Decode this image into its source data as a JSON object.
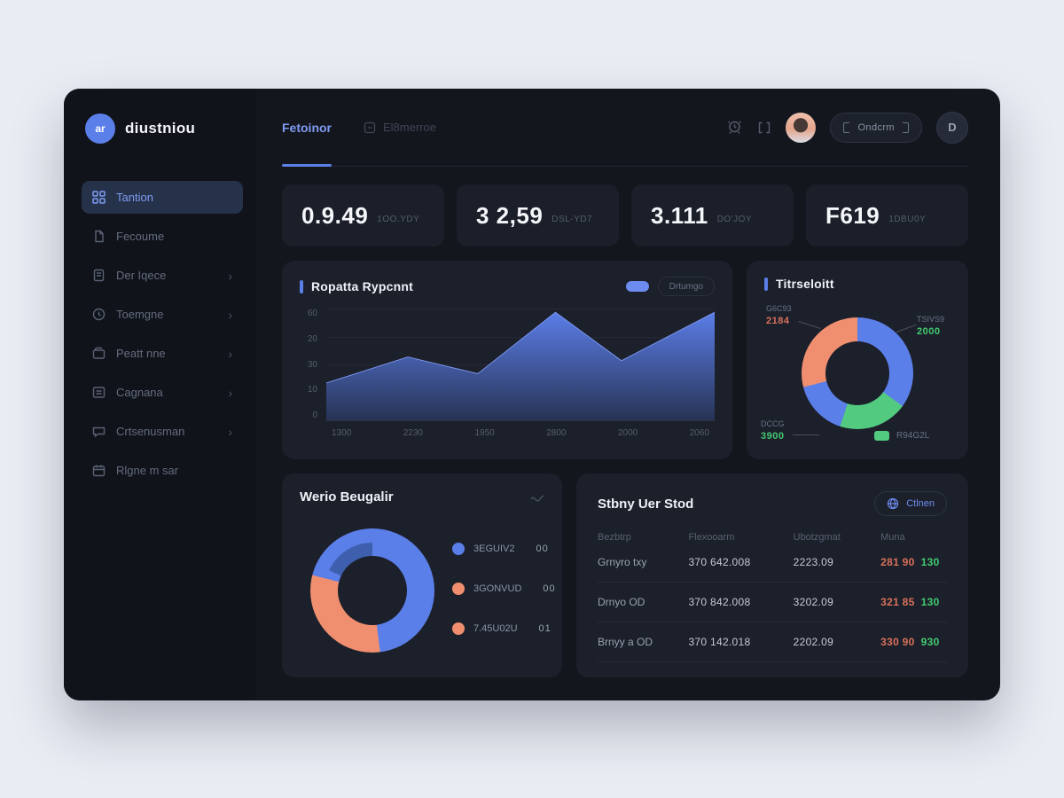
{
  "theme": {
    "page_bg": "#e9ecf3",
    "window_bg": "#14161d",
    "sidebar_bg": "#10131a",
    "card_bg": "#1c202b",
    "accent_blue": "#5b7fe8",
    "salmon": "#ef8f70",
    "green": "#52cb80",
    "red_text": "#d9705a",
    "green_text": "#43ca70"
  },
  "brand": {
    "name": "diustniou",
    "monogram": "ar"
  },
  "sidebar": {
    "items": [
      {
        "label": "Tantion"
      },
      {
        "label": "Fecoume"
      },
      {
        "label": "Der Iqece"
      },
      {
        "label": "Toemgne"
      },
      {
        "label": "Peatt nne"
      },
      {
        "label": "Cagnana"
      },
      {
        "label": "Crtsenusman"
      },
      {
        "label": "Rlgne m sar"
      }
    ]
  },
  "header": {
    "tabs": [
      {
        "label": "Fetoinor"
      },
      {
        "label": "El8merroe"
      }
    ],
    "pill_button_label": "Ondcrm",
    "circle_button_label": "D"
  },
  "stats": [
    {
      "value": "0.9.49",
      "caption": "1OO.YDY"
    },
    {
      "value": "3 2,59",
      "caption": "DSL-YD7"
    },
    {
      "value": "3.111",
      "caption": "DO'JOY"
    },
    {
      "value": "F619",
      "caption": "1DBU0Y"
    }
  ],
  "area_card": {
    "title": "Ropatta Rypcnnt",
    "legend_label": "Drtumgo"
  },
  "donut_card": {
    "title": "Titrseloitt",
    "callouts": [
      {
        "label": "G6C93",
        "value": "2184"
      },
      {
        "label": "TSIVS9",
        "value": "2000"
      },
      {
        "label": "DCCG",
        "value": "3900"
      }
    ],
    "legend_label": "R94G2L"
  },
  "breakdown_card": {
    "title": "Werio Beugalir",
    "legend": [
      {
        "label": "3EGUIV2",
        "value": "00",
        "color": "#5b7fe8"
      },
      {
        "label": "3GONVUD",
        "value": "00",
        "color": "#ef8f70"
      },
      {
        "label": "7.45U02U",
        "value": "01",
        "color": "#ef8f70"
      }
    ]
  },
  "table_card": {
    "title": "Stbny Uer Stod",
    "button_label": "Ctlnen",
    "headers": [
      "Bezbtrp",
      "Flexooarm",
      "Ubotzgmat",
      "Muna"
    ],
    "rows": [
      {
        "name": "Grnyro txy",
        "platform": "370 642.008",
        "amount": "2223.09",
        "delta_red": "281 90",
        "delta_green": "130"
      },
      {
        "name": "Drnyo OD",
        "platform": "370 842.008",
        "amount": "3202.09",
        "delta_red": "321 85",
        "delta_green": "130"
      },
      {
        "name": "Brnyy a OD",
        "platform": "370 142.018",
        "amount": "2202.09",
        "delta_red": "330 90",
        "delta_green": "930"
      }
    ]
  },
  "chart_data": [
    {
      "type": "area",
      "title": "Ropatta Rypcnnt",
      "legend": [
        "Drtumgo"
      ],
      "x_labels": [
        "1300",
        "2230",
        "1950",
        "2800",
        "2000",
        "2060"
      ],
      "y_ticks": [
        "60",
        "20",
        "30",
        "10",
        "0"
      ],
      "x": [
        0,
        21,
        39,
        59,
        76,
        100
      ],
      "values": [
        20,
        34,
        25,
        58,
        32,
        58
      ],
      "ylim": [
        0,
        60
      ],
      "grid": true,
      "line_color": "#7d97ef",
      "fill_top": "#5b7ee8",
      "fill_bottom": "#273354"
    },
    {
      "type": "donut",
      "title": "Titrseloitt",
      "segments": [
        {
          "label": "TSIVS9",
          "value": 35,
          "color": "#5b7fe8"
        },
        {
          "label": "R94G2L",
          "value": 20,
          "color": "#52cb80"
        },
        {
          "label": "DCCG",
          "value": 16,
          "color": "#5b7fe8"
        },
        {
          "label": "G6C93",
          "value": 29,
          "color": "#ef8f70"
        }
      ],
      "callout_values": {
        "G6C93": "2184",
        "TSIVS9": "2000",
        "DCCG": "3900"
      }
    },
    {
      "type": "donut",
      "title": "Werio Beugalir",
      "segments": [
        {
          "label": "3EGUIV2",
          "value": 48,
          "color": "#5b7fe8"
        },
        {
          "label": "3GONVUD",
          "value": 31,
          "color": "#ef8f70"
        },
        {
          "label": "7.45U02U",
          "value": 21,
          "color": "#5b7fe8"
        }
      ],
      "inner_arc": {
        "from_deg": 295,
        "sweep_deg": 65,
        "color": "#3e5fae"
      },
      "legend_values": [
        "00",
        "00",
        "01"
      ]
    }
  ]
}
